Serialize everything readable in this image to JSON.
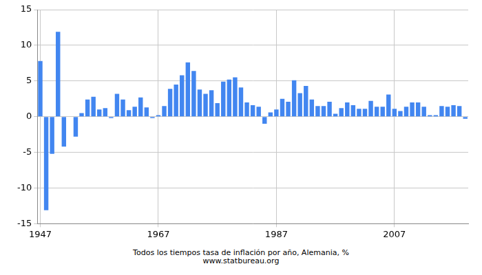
{
  "chart_data": {
    "type": "bar",
    "title": "Todos los tiempos tasa de inflación por año, Alemania, %",
    "subtitle": "www.statbureau.org",
    "categories": [
      "1947",
      null,
      null,
      null,
      null,
      null,
      null,
      null,
      null,
      null,
      null,
      null,
      null,
      null,
      null,
      null,
      null,
      null,
      null,
      null,
      "1967",
      null,
      null,
      null,
      null,
      null,
      null,
      null,
      null,
      null,
      null,
      null,
      null,
      null,
      null,
      null,
      null,
      null,
      null,
      null,
      "1987",
      null,
      null,
      null,
      null,
      null,
      null,
      null,
      null,
      null,
      null,
      null,
      null,
      null,
      null,
      null,
      null,
      null,
      null,
      null,
      "2007",
      null,
      null,
      null,
      null,
      null,
      null,
      null,
      null,
      null,
      null,
      null,
      null
    ],
    "values": [
      7.8,
      -13.1,
      -5.2,
      11.9,
      -4.2,
      0,
      -2.8,
      0.5,
      2.4,
      2.8,
      1.0,
      1.2,
      -0.2,
      3.2,
      2.4,
      0.9,
      1.4,
      2.7,
      1.3,
      -0.2,
      0.2,
      1.5,
      3.9,
      4.5,
      5.8,
      7.6,
      6.4,
      3.8,
      3.2,
      3.7,
      1.9,
      4.9,
      5.2,
      5.5,
      4.1,
      2.0,
      1.6,
      1.4,
      -1.0,
      0.6,
      1.0,
      2.5,
      2.1,
      5.1,
      3.3,
      4.3,
      2.4,
      1.5,
      1.5,
      2.1,
      0.4,
      1.2,
      2.0,
      1.6,
      1.1,
      1.1,
      2.2,
      1.4,
      1.4,
      3.1,
      1.1,
      0.8,
      1.4,
      2.0,
      2.0,
      1.4,
      0.2,
      0.2,
      1.5,
      1.4,
      1.6,
      1.5,
      -0.3
    ],
    "color": "#4286f0",
    "ylim": [
      -15,
      15
    ],
    "yticks": [
      -15,
      -10,
      -5,
      0,
      5,
      10,
      15
    ],
    "grid": true
  }
}
